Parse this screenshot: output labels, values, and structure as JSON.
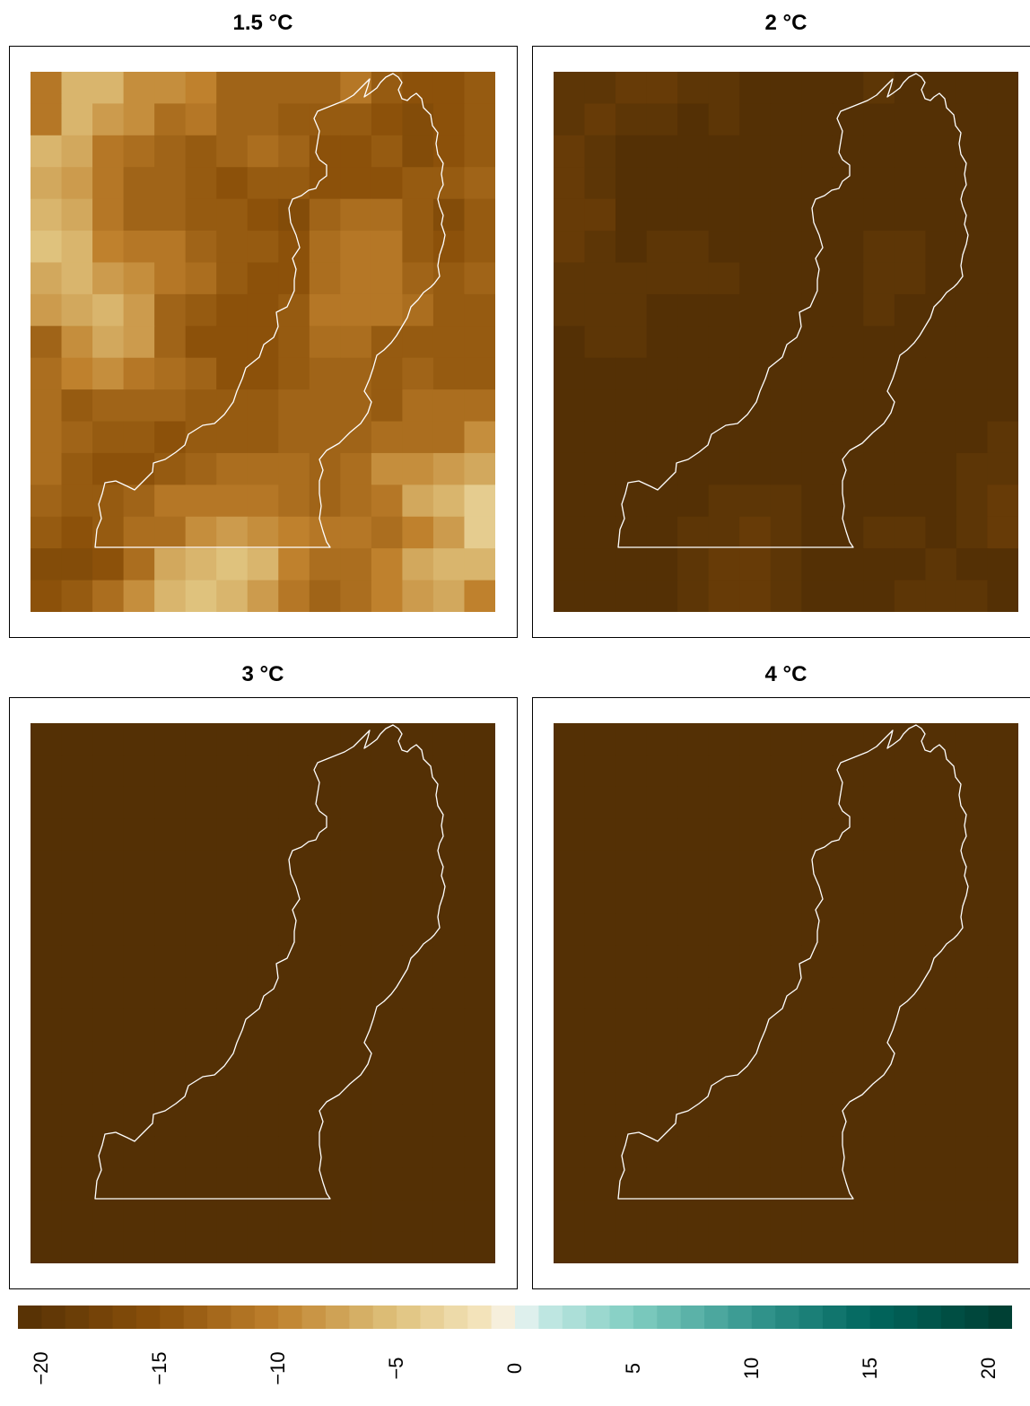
{
  "chart_data": {
    "type": "heatmap",
    "panels": [
      {
        "title": "1.5 °C",
        "rows": 17,
        "cols": 15,
        "values": [
          [
            -11,
            -6,
            -6,
            -9,
            -9,
            -10,
            -13,
            -13,
            -13,
            -13,
            -11,
            -14,
            -15,
            -15,
            -14
          ],
          [
            -11,
            -6,
            -8,
            -9,
            -12,
            -11,
            -13,
            -13,
            -14,
            -14,
            -14,
            -15,
            -16,
            -15,
            -14
          ],
          [
            -6,
            -7,
            -11,
            -12,
            -13,
            -14,
            -13,
            -12,
            -13,
            -15,
            -15,
            -14,
            -16,
            -15,
            -14
          ],
          [
            -7,
            -8,
            -11,
            -13,
            -13,
            -14,
            -15,
            -14,
            -14,
            -15,
            -15,
            -15,
            -14,
            -14,
            -13
          ],
          [
            -6,
            -7,
            -11,
            -13,
            -13,
            -14,
            -14,
            -15,
            -16,
            -13,
            -12,
            -12,
            -14,
            -16,
            -14
          ],
          [
            -5,
            -6,
            -10,
            -11,
            -11,
            -13,
            -14,
            -14,
            -15,
            -12,
            -11,
            -11,
            -14,
            -15,
            -14
          ],
          [
            -7,
            -6,
            -8,
            -9,
            -11,
            -12,
            -14,
            -15,
            -15,
            -12,
            -11,
            -11,
            -13,
            -14,
            -13
          ],
          [
            -8,
            -7,
            -6,
            -8,
            -13,
            -14,
            -15,
            -15,
            -14,
            -11,
            -11,
            -11,
            -12,
            -14,
            -14
          ],
          [
            -13,
            -9,
            -7,
            -8,
            -13,
            -15,
            -15,
            -15,
            -14,
            -12,
            -12,
            -14,
            -14,
            -14,
            -14
          ],
          [
            -12,
            -10,
            -9,
            -11,
            -12,
            -13,
            -15,
            -15,
            -14,
            -13,
            -13,
            -14,
            -13,
            -14,
            -14
          ],
          [
            -12,
            -14,
            -13,
            -13,
            -13,
            -14,
            -14,
            -14,
            -13,
            -13,
            -13,
            -14,
            -12,
            -12,
            -12
          ],
          [
            -12,
            -13,
            -14,
            -14,
            -15,
            -14,
            -14,
            -14,
            -13,
            -13,
            -13,
            -12,
            -12,
            -12,
            -9
          ],
          [
            -12,
            -14,
            -15,
            -15,
            -14,
            -13,
            -12,
            -12,
            -12,
            -13,
            -12,
            -9,
            -9,
            -8,
            -7
          ],
          [
            -13,
            -14,
            -14,
            -13,
            -11,
            -11,
            -11,
            -11,
            -12,
            -13,
            -12,
            -11,
            -7,
            -6,
            -4
          ],
          [
            -14,
            -15,
            -14,
            -12,
            -12,
            -9,
            -8,
            -9,
            -10,
            -11,
            -11,
            -12,
            -10,
            -8,
            -4
          ],
          [
            -16,
            -16,
            -15,
            -12,
            -7,
            -6,
            -5,
            -6,
            -10,
            -12,
            -12,
            -10,
            -7,
            -6,
            -6
          ],
          [
            -15,
            -14,
            -12,
            -9,
            -6,
            -5,
            -6,
            -8,
            -11,
            -13,
            -12,
            -10,
            -8,
            -7,
            -10
          ]
        ]
      },
      {
        "title": "2 °C",
        "rows": 17,
        "cols": 15,
        "values": [
          [
            -20,
            -20,
            -19,
            -19,
            -20,
            -20,
            -21,
            -21,
            -21,
            -21,
            -20,
            -21,
            -21,
            -21,
            -21
          ],
          [
            -20,
            -19,
            -20,
            -20,
            -21,
            -20,
            -21,
            -21,
            -21,
            -21,
            -21,
            -21,
            -21,
            -21,
            -21
          ],
          [
            -19,
            -20,
            -21,
            -21,
            -21,
            -21,
            -21,
            -21,
            -21,
            -21,
            -21,
            -21,
            -21,
            -21,
            -21
          ],
          [
            -19,
            -20,
            -21,
            -21,
            -21,
            -21,
            -21,
            -21,
            -21,
            -21,
            -21,
            -21,
            -21,
            -21,
            -21
          ],
          [
            -19,
            -19,
            -21,
            -21,
            -21,
            -21,
            -21,
            -21,
            -21,
            -21,
            -21,
            -21,
            -21,
            -21,
            -21
          ],
          [
            -19,
            -20,
            -21,
            -20,
            -20,
            -21,
            -21,
            -21,
            -21,
            -21,
            -20,
            -20,
            -21,
            -21,
            -21
          ],
          [
            -20,
            -20,
            -20,
            -20,
            -20,
            -20,
            -21,
            -21,
            -21,
            -21,
            -20,
            -20,
            -21,
            -21,
            -21
          ],
          [
            -20,
            -20,
            -20,
            -21,
            -21,
            -21,
            -21,
            -21,
            -21,
            -21,
            -20,
            -21,
            -21,
            -21,
            -21
          ],
          [
            -21,
            -20,
            -20,
            -21,
            -21,
            -21,
            -21,
            -21,
            -21,
            -21,
            -21,
            -21,
            -21,
            -21,
            -21
          ],
          [
            -21,
            -21,
            -21,
            -21,
            -21,
            -21,
            -21,
            -21,
            -21,
            -21,
            -21,
            -21,
            -21,
            -21,
            -21
          ],
          [
            -21,
            -21,
            -21,
            -21,
            -21,
            -21,
            -21,
            -21,
            -21,
            -21,
            -21,
            -21,
            -21,
            -21,
            -21
          ],
          [
            -21,
            -21,
            -21,
            -21,
            -21,
            -21,
            -21,
            -21,
            -21,
            -21,
            -21,
            -21,
            -21,
            -21,
            -20
          ],
          [
            -21,
            -21,
            -21,
            -21,
            -21,
            -21,
            -21,
            -21,
            -21,
            -21,
            -21,
            -21,
            -21,
            -20,
            -20
          ],
          [
            -21,
            -21,
            -21,
            -21,
            -21,
            -20,
            -20,
            -20,
            -21,
            -21,
            -21,
            -21,
            -21,
            -20,
            -19
          ],
          [
            -21,
            -21,
            -21,
            -21,
            -20,
            -20,
            -19,
            -20,
            -21,
            -21,
            -20,
            -20,
            -21,
            -20,
            -19
          ],
          [
            -21,
            -21,
            -21,
            -21,
            -20,
            -19,
            -19,
            -20,
            -21,
            -21,
            -21,
            -21,
            -20,
            -21,
            -21
          ],
          [
            -21,
            -21,
            -21,
            -21,
            -20,
            -19,
            -19,
            -20,
            -21,
            -21,
            -21,
            -20,
            -20,
            -20,
            -21
          ]
        ]
      },
      {
        "title": "3 °C",
        "rows": 17,
        "cols": 15,
        "uniform_value": -21
      },
      {
        "title": "4 °C",
        "rows": 17,
        "cols": 15,
        "uniform_value": -21
      }
    ],
    "colorbar": {
      "min": -21,
      "max": 21,
      "bins": 42,
      "ticks": [
        "−20",
        "−15",
        "−10",
        "−5",
        "0",
        "5",
        "10",
        "15",
        "20"
      ],
      "tick_values": [
        -20,
        -15,
        -10,
        -5,
        0,
        5,
        10,
        15,
        20
      ]
    },
    "palette": {
      "neg_dark": "#543005",
      "neg_mid": "#8c510a",
      "neg_light2": "#bf812d",
      "neg_light1": "#dfc27d",
      "neg_pale": "#f6e8c3",
      "zero": "#f5f5f5",
      "pos_pale": "#c7eae5",
      "pos_light": "#80cdc1",
      "pos_mid": "#35978f",
      "pos_dark": "#01665e",
      "pos_darkest": "#003c30"
    },
    "outline_color": "#ffffff"
  }
}
